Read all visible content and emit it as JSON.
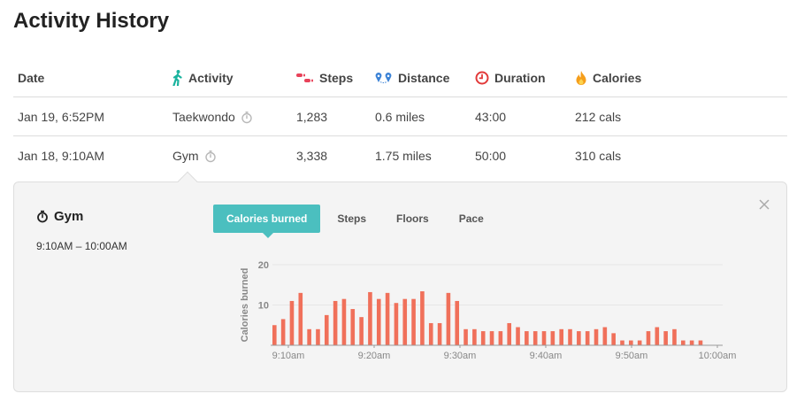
{
  "page": {
    "title": "Activity History"
  },
  "table": {
    "headers": {
      "date": "Date",
      "activity": "Activity",
      "steps": "Steps",
      "distance": "Distance",
      "duration": "Duration",
      "calories": "Calories"
    },
    "rows": [
      {
        "date": "Jan 19, 6:52PM",
        "activity": "Taekwondo",
        "steps": "1,283",
        "distance": "0.6 miles",
        "duration": "43:00",
        "calories": "212 cals"
      },
      {
        "date": "Jan 18, 9:10AM",
        "activity": "Gym",
        "steps": "3,338",
        "distance": "1.75 miles",
        "duration": "50:00",
        "calories": "310 cals"
      }
    ]
  },
  "colors": {
    "accent": "#4bbfbf",
    "bar": "#f0705a",
    "activity_icon": "#1bb39e",
    "steps_icon": "#e8425a",
    "distance_icon": "#3b82d6",
    "duration_icon": "#e23a3a",
    "calories_icon": "#f59e1b"
  },
  "detail": {
    "title": "Gym",
    "time_range": "9:10AM – 10:00AM",
    "tabs": [
      "Calories burned",
      "Steps",
      "Floors",
      "Pace"
    ],
    "active_tab": 0
  },
  "chart_data": {
    "type": "bar",
    "ylabel": "Calories burned",
    "xlabel": "",
    "ylim": [
      0,
      20
    ],
    "yticks": [
      10,
      20
    ],
    "xticks": [
      "9:10am",
      "9:20am",
      "9:30am",
      "9:40am",
      "9:50am",
      "10:00am"
    ],
    "values": [
      5,
      6.5,
      11,
      13,
      4,
      4,
      7.5,
      11,
      11.5,
      9,
      7,
      13.2,
      11.5,
      13,
      10.5,
      11.5,
      11.5,
      13.4,
      5.5,
      5.5,
      13,
      11,
      4,
      4,
      3.5,
      3.5,
      3.5,
      5.5,
      4.5,
      3.5,
      3.5,
      3.5,
      3.5,
      4,
      4,
      3.5,
      3.5,
      4,
      4.5,
      3,
      1.2,
      1.2,
      1.2,
      3.5,
      4.5,
      3.5,
      4,
      1.2,
      1.2,
      1.2
    ]
  }
}
